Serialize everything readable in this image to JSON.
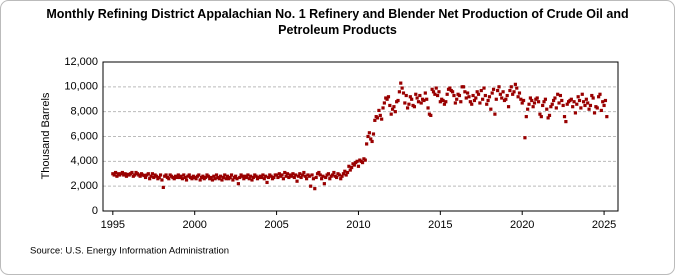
{
  "chart_data": {
    "type": "scatter",
    "title": "Monthly Refining District Appalachian No. 1 Refinery and Blender Net Production of Crude Oil and Petroleum Products",
    "y_label": "Thousand Barrels",
    "source": "Source: U.S. Energy Information Administration",
    "xlim": [
      1994.4,
      2025.85
    ],
    "xticks": [
      1995,
      2000,
      2005,
      2010,
      2015,
      2020,
      2025
    ],
    "ylim": [
      0,
      12000
    ],
    "yticks": [
      0,
      {
        "value": 2000,
        "label": "2,000"
      },
      {
        "value": 4000,
        "label": "4,000"
      },
      {
        "value": 6000,
        "label": "6,000"
      },
      {
        "value": 8000,
        "label": "8,000"
      },
      {
        "value": 10000,
        "label": "10,000"
      },
      {
        "value": 12000,
        "label": "12,000"
      }
    ],
    "grid": true,
    "series": [
      {
        "color": "#990000",
        "x": [
          1995,
          1995.083,
          1995.167,
          1995.25,
          1995.333,
          1995.417,
          1995.5,
          1995.583,
          1995.667,
          1995.75,
          1995.833,
          1995.917,
          1996,
          1996.083,
          1996.167,
          1996.25,
          1996.333,
          1996.417,
          1996.5,
          1996.583,
          1996.667,
          1996.75,
          1996.833,
          1996.917,
          1997,
          1997.083,
          1997.167,
          1997.25,
          1997.333,
          1997.417,
          1997.5,
          1997.583,
          1997.667,
          1997.75,
          1997.833,
          1997.917,
          1998,
          1998.083,
          1998.167,
          1998.25,
          1998.333,
          1998.417,
          1998.5,
          1998.583,
          1998.667,
          1998.75,
          1998.833,
          1998.917,
          1999,
          1999.083,
          1999.167,
          1999.25,
          1999.333,
          1999.417,
          1999.5,
          1999.583,
          1999.667,
          1999.75,
          1999.833,
          1999.917,
          2000,
          2000.083,
          2000.167,
          2000.25,
          2000.333,
          2000.417,
          2000.5,
          2000.583,
          2000.667,
          2000.75,
          2000.833,
          2000.917,
          2001,
          2001.083,
          2001.167,
          2001.25,
          2001.333,
          2001.417,
          2001.5,
          2001.583,
          2001.667,
          2001.75,
          2001.833,
          2001.917,
          2002,
          2002.083,
          2002.167,
          2002.25,
          2002.333,
          2002.417,
          2002.5,
          2002.583,
          2002.667,
          2002.75,
          2002.833,
          2002.917,
          2003,
          2003.083,
          2003.167,
          2003.25,
          2003.333,
          2003.417,
          2003.5,
          2003.583,
          2003.667,
          2003.75,
          2003.833,
          2003.917,
          2004,
          2004.083,
          2004.167,
          2004.25,
          2004.333,
          2004.417,
          2004.5,
          2004.583,
          2004.667,
          2004.75,
          2004.833,
          2004.917,
          2005,
          2005.083,
          2005.167,
          2005.25,
          2005.333,
          2005.417,
          2005.5,
          2005.583,
          2005.667,
          2005.75,
          2005.833,
          2005.917,
          2006,
          2006.083,
          2006.167,
          2006.25,
          2006.333,
          2006.417,
          2006.5,
          2006.583,
          2006.667,
          2006.75,
          2006.833,
          2006.917,
          2007,
          2007.083,
          2007.167,
          2007.25,
          2007.333,
          2007.417,
          2007.5,
          2007.583,
          2007.667,
          2007.75,
          2007.833,
          2007.917,
          2008,
          2008.083,
          2008.167,
          2008.25,
          2008.333,
          2008.417,
          2008.5,
          2008.583,
          2008.667,
          2008.75,
          2008.833,
          2008.917,
          2009,
          2009.083,
          2009.167,
          2009.25,
          2009.333,
          2009.417,
          2009.5,
          2009.583,
          2009.667,
          2009.75,
          2009.833,
          2009.917,
          2010,
          2010.083,
          2010.167,
          2010.25,
          2010.333,
          2010.417,
          2010.5,
          2010.583,
          2010.667,
          2010.75,
          2010.833,
          2010.917,
          2011,
          2011.083,
          2011.167,
          2011.25,
          2011.333,
          2011.417,
          2011.5,
          2011.583,
          2011.667,
          2011.75,
          2011.833,
          2011.917,
          2012,
          2012.083,
          2012.167,
          2012.25,
          2012.333,
          2012.417,
          2012.5,
          2012.583,
          2012.667,
          2012.75,
          2012.833,
          2012.917,
          2013,
          2013.083,
          2013.167,
          2013.25,
          2013.333,
          2013.417,
          2013.5,
          2013.583,
          2013.667,
          2013.75,
          2013.833,
          2013.917,
          2014,
          2014.083,
          2014.167,
          2014.25,
          2014.333,
          2014.417,
          2014.5,
          2014.583,
          2014.667,
          2014.75,
          2014.833,
          2014.917,
          2015,
          2015.083,
          2015.167,
          2015.25,
          2015.333,
          2015.417,
          2015.5,
          2015.583,
          2015.667,
          2015.75,
          2015.833,
          2015.917,
          2016,
          2016.083,
          2016.167,
          2016.25,
          2016.333,
          2016.417,
          2016.5,
          2016.583,
          2016.667,
          2016.75,
          2016.833,
          2016.917,
          2017,
          2017.083,
          2017.167,
          2017.25,
          2017.333,
          2017.417,
          2017.5,
          2017.583,
          2017.667,
          2017.75,
          2017.833,
          2017.917,
          2018,
          2018.083,
          2018.167,
          2018.25,
          2018.333,
          2018.417,
          2018.5,
          2018.583,
          2018.667,
          2018.75,
          2018.833,
          2018.917,
          2019,
          2019.083,
          2019.167,
          2019.25,
          2019.333,
          2019.417,
          2019.5,
          2019.583,
          2019.667,
          2019.75,
          2019.833,
          2019.917,
          2020,
          2020.083,
          2020.167,
          2020.25,
          2020.333,
          2020.417,
          2020.5,
          2020.583,
          2020.667,
          2020.75,
          2020.833,
          2020.917,
          2021,
          2021.083,
          2021.167,
          2021.25,
          2021.333,
          2021.417,
          2021.5,
          2021.583,
          2021.667,
          2021.75,
          2021.833,
          2021.917,
          2022,
          2022.083,
          2022.167,
          2022.25,
          2022.333,
          2022.417,
          2022.5,
          2022.583,
          2022.667,
          2022.75,
          2022.833,
          2022.917,
          2023,
          2023.083,
          2023.167,
          2023.25,
          2023.333,
          2023.417,
          2023.5,
          2023.583,
          2023.667,
          2023.75,
          2023.833,
          2023.917,
          2024,
          2024.083,
          2024.167,
          2024.25,
          2024.333,
          2024.417,
          2024.5,
          2024.583,
          2024.667,
          2024.75,
          2024.833,
          2024.917,
          2025,
          2025.083,
          2025.167
        ],
        "values": [
          3000,
          2900,
          3100,
          2800,
          3000,
          2900,
          3000,
          3100,
          2900,
          3000,
          2800,
          2950,
          2900,
          3000,
          3100,
          2800,
          2900,
          3100,
          3000,
          2900,
          2800,
          3000,
          2900,
          2850,
          2700,
          2900,
          3000,
          2600,
          2800,
          3000,
          2700,
          2900,
          2800,
          2600,
          2700,
          2900,
          2500,
          1900,
          2800,
          2900,
          2700,
          2600,
          2900,
          2800,
          2700,
          2600,
          2800,
          2700,
          2900,
          2700,
          2800,
          2600,
          2900,
          2700,
          2500,
          2800,
          2900,
          2700,
          2600,
          2800,
          2700,
          2600,
          2800,
          2900,
          2500,
          2700,
          2800,
          2600,
          2700,
          2900,
          2800,
          2600,
          2700,
          2500,
          2800,
          2600,
          2900,
          2700,
          2600,
          2800,
          2500,
          2700,
          2900,
          2600,
          2800,
          2600,
          2700,
          2900,
          2500,
          2700,
          2800,
          2600,
          2200,
          2700,
          2900,
          2800,
          2600,
          2800,
          2700,
          2900,
          2600,
          2800,
          2500,
          2700,
          2900,
          2800,
          2600,
          2700,
          2800,
          2700,
          2900,
          2600,
          2800,
          2300,
          2700,
          2900,
          2800,
          2600,
          2700,
          2900,
          2900,
          2700,
          3000,
          2800,
          2900,
          2600,
          3100,
          2800,
          3000,
          2700,
          2900,
          2800,
          3000,
          2700,
          2900,
          2400,
          2800,
          3000,
          2700,
          2900,
          3100,
          2800,
          2600,
          2900,
          2800,
          2000,
          2900,
          2600,
          1800,
          2700,
          3000,
          3100,
          2900,
          2600,
          2800,
          2200,
          2700,
          2900,
          3000,
          2600,
          2800,
          2900,
          3100,
          2800,
          2700,
          3000,
          2900,
          2600,
          2800,
          3000,
          3200,
          2900,
          3100,
          3600,
          3300,
          3500,
          3800,
          3700,
          3900,
          4000,
          3600,
          4100,
          4000,
          3900,
          4200,
          4100,
          5400,
          6000,
          6300,
          5800,
          5600,
          6200,
          7300,
          7600,
          7500,
          8100,
          7700,
          7400,
          8300,
          8700,
          9100,
          9000,
          9200,
          8500,
          7800,
          8200,
          8400,
          8000,
          8800,
          8900,
          9600,
          10300,
          9900,
          9500,
          8700,
          9300,
          8300,
          8600,
          9200,
          9000,
          8500,
          8400,
          9400,
          9100,
          8800,
          9300,
          8700,
          9000,
          8900,
          9500,
          9000,
          8300,
          7800,
          7700,
          9800,
          9600,
          9400,
          9900,
          9300,
          9600,
          8800,
          9000,
          8900,
          8600,
          8800,
          9400,
          9800,
          9900,
          9700,
          9600,
          9300,
          8700,
          9000,
          9400,
          9300,
          8800,
          10000,
          10000,
          9600,
          9100,
          9500,
          9200,
          8800,
          8600,
          9300,
          8900,
          9100,
          9600,
          9400,
          8700,
          9700,
          9000,
          9900,
          9300,
          8600,
          8900,
          9200,
          8200,
          9500,
          9800,
          7800,
          9000,
          9700,
          10000,
          9400,
          9100,
          9600,
          8900,
          9000,
          9300,
          8400,
          9700,
          10000,
          9400,
          9600,
          10200,
          9900,
          9200,
          9500,
          9000,
          8700,
          8900,
          5900,
          7600,
          8200,
          8600,
          9100,
          8900,
          8400,
          8700,
          9000,
          9100,
          8800,
          7800,
          7600,
          8500,
          8800,
          9000,
          8200,
          7500,
          7700,
          8400,
          8600,
          8900,
          9100,
          8300,
          9400,
          8700,
          9300,
          8900,
          8500,
          7600,
          7200,
          8600,
          8800,
          8900,
          9000,
          8400,
          8800,
          7900,
          8600,
          9200,
          8900,
          8300,
          9400,
          8800,
          8500,
          9000,
          8700,
          8200,
          8500,
          9300,
          9100,
          7900,
          8400,
          8300,
          9200,
          9400,
          8100,
          8800,
          8500,
          8900,
          7600
        ]
      }
    ]
  }
}
